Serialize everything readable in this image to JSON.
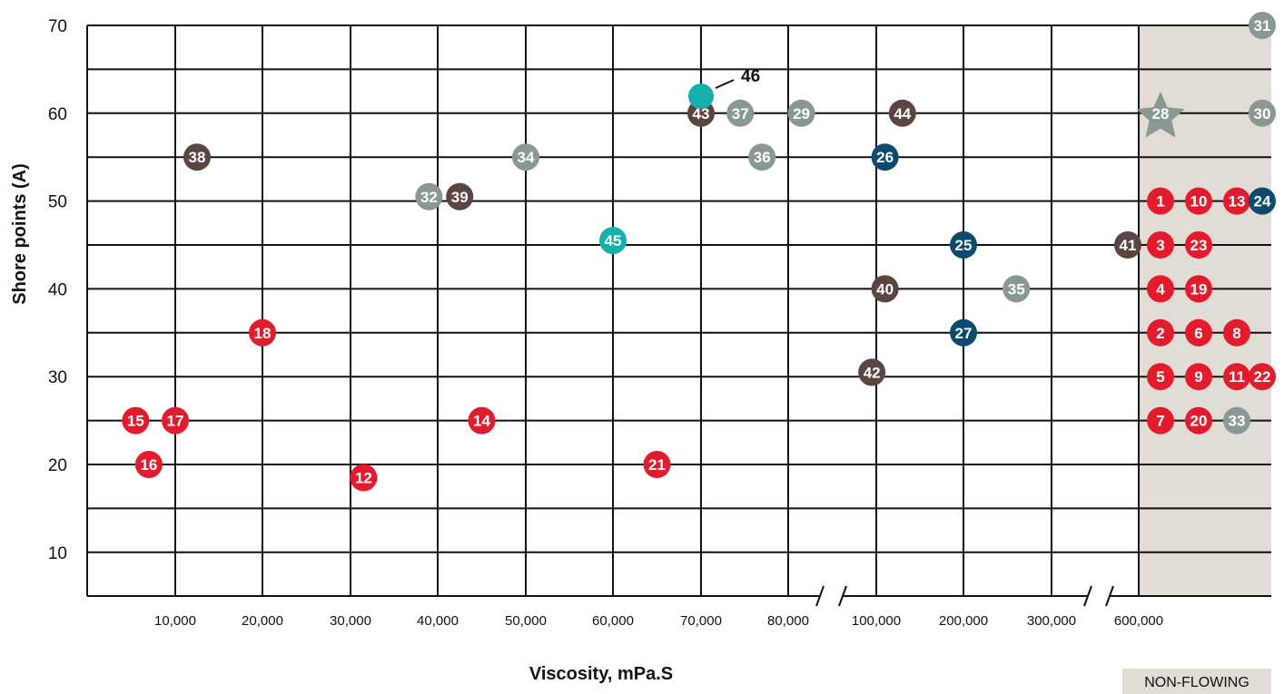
{
  "chart_data": {
    "type": "scatter",
    "xlabel": "Viscosity, mPa.S",
    "ylabel": "Shore points (A)",
    "x_ticks": [
      "10,000",
      "20,000",
      "30,000",
      "40,000",
      "50,000",
      "60,000",
      "70,000",
      "80,000",
      "100,000",
      "200,000",
      "300,000",
      "600,000"
    ],
    "y_ticks": [
      "10",
      "20",
      "30",
      "40",
      "50",
      "60",
      "70"
    ],
    "ylim": [
      5,
      70
    ],
    "non_flowing_label": "NON-FLOWING",
    "axis_breaks": [
      "80,000–100,000",
      "300,000–600,000"
    ],
    "colors": {
      "red": "#e31b2d",
      "gray": "#8a9893",
      "brown": "#5a4540",
      "navy": "#0c4a6e",
      "teal": "#13b0ac",
      "star": "#8a9893",
      "band": "#e1ddd4"
    },
    "points": [
      {
        "id": "1",
        "x": "non-flowing",
        "y": 50,
        "color": "red"
      },
      {
        "id": "2",
        "x": "non-flowing",
        "y": 35,
        "color": "red"
      },
      {
        "id": "3",
        "x": "non-flowing",
        "y": 45,
        "color": "red"
      },
      {
        "id": "4",
        "x": "non-flowing",
        "y": 40,
        "color": "red"
      },
      {
        "id": "5",
        "x": "non-flowing",
        "y": 30,
        "color": "red"
      },
      {
        "id": "6",
        "x": "non-flowing",
        "y": 35,
        "color": "red"
      },
      {
        "id": "7",
        "x": "non-flowing",
        "y": 25,
        "color": "red"
      },
      {
        "id": "8",
        "x": "non-flowing",
        "y": 35,
        "color": "red"
      },
      {
        "id": "9",
        "x": "non-flowing",
        "y": 30,
        "color": "red"
      },
      {
        "id": "10",
        "x": "non-flowing",
        "y": 50,
        "color": "red"
      },
      {
        "id": "11",
        "x": "non-flowing",
        "y": 30,
        "color": "red"
      },
      {
        "id": "12",
        "x": 31500,
        "y": 18.5,
        "color": "red"
      },
      {
        "id": "13",
        "x": "non-flowing",
        "y": 50,
        "color": "red"
      },
      {
        "id": "14",
        "x": 45000,
        "y": 25,
        "color": "red"
      },
      {
        "id": "15",
        "x": 5500,
        "y": 25,
        "color": "red"
      },
      {
        "id": "16",
        "x": 7000,
        "y": 20,
        "color": "red"
      },
      {
        "id": "17",
        "x": 10000,
        "y": 25,
        "color": "red"
      },
      {
        "id": "18",
        "x": 20000,
        "y": 35,
        "color": "red"
      },
      {
        "id": "19",
        "x": "non-flowing",
        "y": 40,
        "color": "red"
      },
      {
        "id": "20",
        "x": "non-flowing",
        "y": 25,
        "color": "red"
      },
      {
        "id": "21",
        "x": 65000,
        "y": 20,
        "color": "red"
      },
      {
        "id": "22",
        "x": "non-flowing",
        "y": 30,
        "color": "red"
      },
      {
        "id": "23",
        "x": "non-flowing",
        "y": 45,
        "color": "red"
      },
      {
        "id": "24",
        "x": "non-flowing",
        "y": 50,
        "color": "navy"
      },
      {
        "id": "25",
        "x": 200000,
        "y": 45,
        "color": "navy"
      },
      {
        "id": "26",
        "x": 110000,
        "y": 55,
        "color": "navy"
      },
      {
        "id": "27",
        "x": 200000,
        "y": 35,
        "color": "navy"
      },
      {
        "id": "28",
        "x": "non-flowing",
        "y": 60,
        "color": "star",
        "shape": "star"
      },
      {
        "id": "29",
        "x": 83000,
        "y": 60,
        "color": "gray"
      },
      {
        "id": "30",
        "x": "non-flowing",
        "y": 60,
        "color": "gray"
      },
      {
        "id": "31",
        "x": "non-flowing",
        "y": 70,
        "color": "gray"
      },
      {
        "id": "32",
        "x": 39000,
        "y": 50.5,
        "color": "gray"
      },
      {
        "id": "33",
        "x": "non-flowing",
        "y": 25,
        "color": "gray"
      },
      {
        "id": "34",
        "x": 50000,
        "y": 55,
        "color": "gray"
      },
      {
        "id": "35",
        "x": 260000,
        "y": 40,
        "color": "gray"
      },
      {
        "id": "36",
        "x": 77000,
        "y": 55,
        "color": "gray"
      },
      {
        "id": "37",
        "x": 74500,
        "y": 60,
        "color": "gray"
      },
      {
        "id": "38",
        "x": 12500,
        "y": 55,
        "color": "brown"
      },
      {
        "id": "39",
        "x": 42500,
        "y": 50.5,
        "color": "brown"
      },
      {
        "id": "40",
        "x": 110000,
        "y": 40,
        "color": "brown"
      },
      {
        "id": "41",
        "x": "non-flowing",
        "y": 45,
        "color": "brown"
      },
      {
        "id": "42",
        "x": 99000,
        "y": 30.5,
        "color": "brown"
      },
      {
        "id": "43",
        "x": 70000,
        "y": 60,
        "color": "brown"
      },
      {
        "id": "44",
        "x": 130000,
        "y": 60,
        "color": "brown"
      },
      {
        "id": "45",
        "x": 60000,
        "y": 45.5,
        "color": "teal"
      },
      {
        "id": "46",
        "x": 70000,
        "y": 61,
        "color": "teal",
        "label_outside": true
      }
    ]
  }
}
